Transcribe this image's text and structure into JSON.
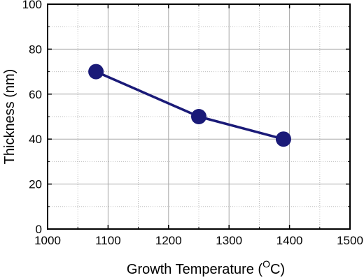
{
  "chart_data": {
    "type": "line",
    "title": "",
    "xlabel": "Growth Temperature (",
    "xlabel_unit_super": "O",
    "xlabel_unit_tail": "C)",
    "ylabel": "Thickness (nm)",
    "xlim": [
      1000,
      1500
    ],
    "ylim": [
      0,
      100
    ],
    "x_ticks": [
      1000,
      1100,
      1200,
      1300,
      1400,
      1500
    ],
    "y_ticks": [
      0,
      20,
      40,
      60,
      80,
      100
    ],
    "x_minor_step": 50,
    "y_minor_step": 10,
    "grid": true,
    "series": [
      {
        "x": [
          1080,
          1250,
          1390
        ],
        "y": [
          70,
          50,
          40
        ],
        "color": "#1a1a78",
        "marker": "circle"
      }
    ]
  }
}
